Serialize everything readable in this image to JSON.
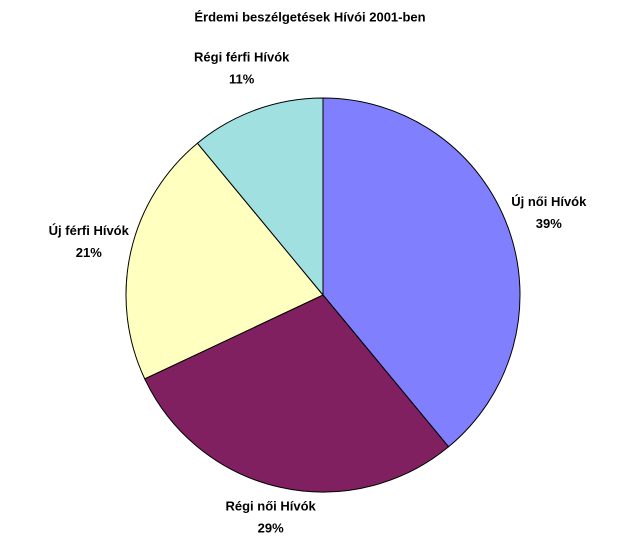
{
  "chart_data": {
    "type": "pie",
    "title": "Érdemi beszélgetések Hívói 2001-ben",
    "categories": [
      "Új női Hívók",
      "Régi női Hívók",
      "Új férfi Hívók",
      "Régi férfi Hívók"
    ],
    "values": [
      39,
      29,
      21,
      11
    ],
    "value_labels": [
      "39%",
      "29%",
      "21%",
      "11%"
    ],
    "colors": [
      "#8080ff",
      "#802060",
      "#ffffc0",
      "#a0e0e0"
    ]
  }
}
